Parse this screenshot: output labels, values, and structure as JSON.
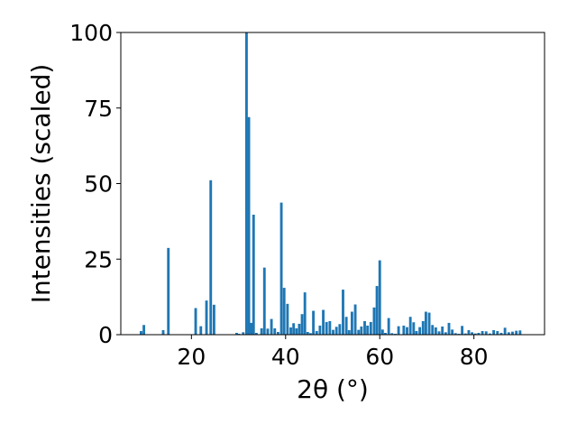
{
  "chart_data": {
    "type": "bar",
    "title": "",
    "xlabel": "2θ (°)",
    "ylabel": "Intensities (scaled)",
    "xlim": [
      5,
      95
    ],
    "ylim": [
      0,
      100
    ],
    "xticks": [
      20,
      40,
      60,
      80
    ],
    "yticks": [
      0,
      25,
      50,
      75,
      100
    ],
    "bar_width_deg": 0.55,
    "color": "#1f77b4",
    "grid": false,
    "legend": "none",
    "x": [
      9.3,
      9.9,
      14.0,
      15.1,
      20.9,
      22.0,
      23.2,
      24.1,
      24.8,
      29.6,
      30.1,
      31.0,
      31.7,
      32.2,
      32.7,
      33.2,
      33.8,
      34.9,
      35.5,
      36.2,
      37.0,
      37.7,
      38.4,
      39.1,
      39.7,
      40.4,
      41.1,
      41.7,
      42.3,
      42.9,
      43.5,
      44.1,
      44.7,
      45.3,
      45.9,
      46.6,
      47.3,
      48.0,
      48.7,
      49.4,
      50.1,
      50.8,
      51.5,
      52.2,
      52.9,
      53.5,
      54.1,
      54.8,
      55.5,
      56.1,
      56.8,
      57.4,
      58.1,
      58.8,
      59.4,
      60.0,
      60.6,
      61.2,
      61.9,
      62.6,
      63.3,
      64.0,
      65.1,
      65.8,
      66.5,
      67.2,
      67.8,
      68.5,
      69.2,
      69.8,
      70.5,
      71.2,
      71.9,
      72.6,
      73.3,
      74.0,
      74.7,
      75.4,
      76.1,
      76.8,
      77.5,
      78.2,
      78.9,
      79.6,
      80.3,
      81.0,
      81.8,
      82.6,
      83.4,
      84.2,
      85.0,
      85.8,
      86.6,
      87.4,
      88.2,
      89.0,
      89.8
    ],
    "values": [
      1.2,
      3.2,
      1.5,
      28.7,
      8.8,
      2.8,
      11.3,
      51.1,
      9.9,
      0.6,
      0.3,
      0.8,
      100.0,
      72.0,
      3.9,
      39.7,
      0.6,
      2.1,
      22.2,
      2.0,
      5.2,
      2.1,
      0.9,
      43.7,
      15.5,
      10.2,
      2.4,
      3.8,
      2.1,
      3.6,
      6.8,
      14.0,
      0.9,
      0.5,
      7.9,
      1.2,
      3.0,
      8.2,
      4.2,
      4.5,
      1.6,
      2.6,
      3.5,
      14.9,
      5.9,
      1.5,
      7.6,
      10.0,
      1.6,
      2.7,
      4.5,
      3.0,
      4.2,
      9.0,
      16.1,
      24.6,
      1.7,
      0.6,
      5.5,
      0.5,
      0.3,
      2.8,
      3.0,
      2.5,
      5.9,
      4.1,
      1.2,
      2.5,
      4.5,
      7.6,
      7.3,
      3.2,
      2.4,
      1.1,
      2.7,
      0.8,
      3.9,
      1.7,
      0.5,
      0.3,
      2.9,
      0.4,
      1.5,
      0.8,
      0.4,
      0.6,
      1.2,
      1.1,
      0.4,
      1.5,
      1.2,
      0.6,
      2.3,
      0.8,
      1.0,
      1.3,
      1.4
    ]
  }
}
